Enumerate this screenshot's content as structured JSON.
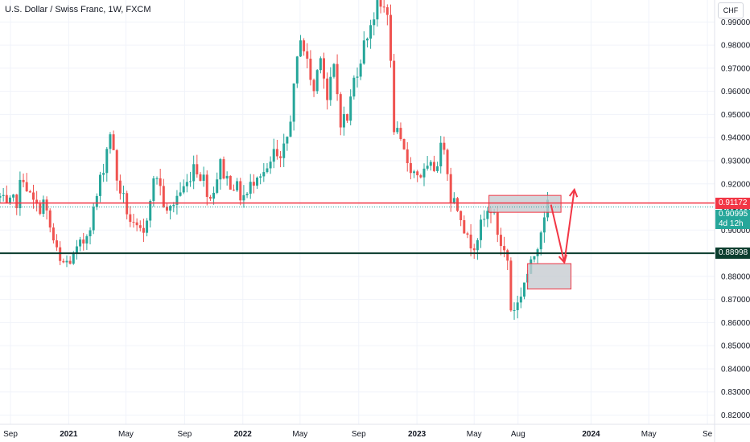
{
  "header": {
    "symbol_title": "U.S. Dollar / Swiss Franc, 1W, FXCM"
  },
  "price_axis": {
    "currency": "CHF"
  },
  "colors": {
    "up": "#26a69a",
    "down": "#ef5350",
    "resistance": "#f23645",
    "support": "#0b3d2e",
    "zone_fill": "#c7ccd1",
    "arrow": "#f23645"
  },
  "chart_data": {
    "type": "candlestick",
    "title": "U.S. Dollar / Swiss Franc, 1W, FXCM",
    "ylim": [
      0.816,
      0.9995
    ],
    "y_ticks": [
      "0.99000",
      "0.98000",
      "0.97000",
      "0.96000",
      "0.95000",
      "0.94000",
      "0.93000",
      "0.92000",
      "0.91000",
      "0.90000",
      "0.89000",
      "0.88000",
      "0.87000",
      "0.86000",
      "0.85000",
      "0.84000",
      "0.83000",
      "0.82000"
    ],
    "x_range": [
      "2020-08-10",
      "2024-09-16"
    ],
    "x_ticks": [
      {
        "label": "Sep",
        "date": "2020-09-01",
        "bold": false
      },
      {
        "label": "2021",
        "date": "2021-01-01",
        "bold": true
      },
      {
        "label": "May",
        "date": "2021-05-01",
        "bold": false
      },
      {
        "label": "Sep",
        "date": "2021-09-01",
        "bold": false
      },
      {
        "label": "2022",
        "date": "2022-01-01",
        "bold": true
      },
      {
        "label": "May",
        "date": "2022-05-01",
        "bold": false
      },
      {
        "label": "Sep",
        "date": "2022-09-01",
        "bold": false
      },
      {
        "label": "2023",
        "date": "2023-01-01",
        "bold": true
      },
      {
        "label": "May",
        "date": "2023-05-01",
        "bold": false
      },
      {
        "label": "Aug",
        "date": "2023-08-01",
        "bold": false
      },
      {
        "label": "2024",
        "date": "2024-01-01",
        "bold": true
      },
      {
        "label": "May",
        "date": "2024-05-01",
        "bold": false
      },
      {
        "label": "Se",
        "date": "2024-09-01",
        "bold": false
      }
    ],
    "close_path": [
      [
        "2020-08-10",
        0.914
      ],
      [
        "2020-08-24",
        0.909
      ],
      [
        "2020-09-14",
        0.913
      ],
      [
        "2020-09-28",
        0.924
      ],
      [
        "2020-10-12",
        0.914
      ],
      [
        "2020-10-26",
        0.909
      ],
      [
        "2020-11-09",
        0.912
      ],
      [
        "2020-11-30",
        0.895
      ],
      [
        "2020-12-14",
        0.885
      ],
      [
        "2020-12-28",
        0.886
      ],
      [
        "2021-01-11",
        0.888
      ],
      [
        "2021-02-01",
        0.895
      ],
      [
        "2021-02-22",
        0.908
      ],
      [
        "2021-03-15",
        0.928
      ],
      [
        "2021-03-29",
        0.943
      ],
      [
        "2021-04-12",
        0.922
      ],
      [
        "2021-04-26",
        0.913
      ],
      [
        "2021-05-17",
        0.9
      ],
      [
        "2021-06-07",
        0.897
      ],
      [
        "2021-06-21",
        0.916
      ],
      [
        "2021-07-05",
        0.924
      ],
      [
        "2021-07-26",
        0.906
      ],
      [
        "2021-08-16",
        0.915
      ],
      [
        "2021-09-06",
        0.92
      ],
      [
        "2021-09-20",
        0.929
      ],
      [
        "2021-10-11",
        0.922
      ],
      [
        "2021-10-25",
        0.914
      ],
      [
        "2021-11-15",
        0.928
      ],
      [
        "2021-11-29",
        0.922
      ],
      [
        "2021-12-13",
        0.92
      ],
      [
        "2021-12-27",
        0.915
      ],
      [
        "2022-01-10",
        0.915
      ],
      [
        "2022-01-31",
        0.926
      ],
      [
        "2022-02-21",
        0.924
      ],
      [
        "2022-03-07",
        0.933
      ],
      [
        "2022-03-21",
        0.928
      ],
      [
        "2022-04-04",
        0.94
      ],
      [
        "2022-04-18",
        0.96
      ],
      [
        "2022-05-02",
        0.985
      ],
      [
        "2022-05-16",
        0.972
      ],
      [
        "2022-05-30",
        0.96
      ],
      [
        "2022-06-13",
        0.978
      ],
      [
        "2022-06-27",
        0.956
      ],
      [
        "2022-07-11",
        0.97
      ],
      [
        "2022-07-25",
        0.948
      ],
      [
        "2022-08-08",
        0.948
      ],
      [
        "2022-08-22",
        0.965
      ],
      [
        "2022-09-05",
        0.975
      ],
      [
        "2022-09-26",
        0.99
      ],
      [
        "2022-10-10",
        0.996
      ],
      [
        "2022-10-31",
        0.996
      ],
      [
        "2022-11-14",
        0.945
      ],
      [
        "2022-11-28",
        0.936
      ],
      [
        "2022-12-12",
        0.93
      ],
      [
        "2022-12-26",
        0.925
      ],
      [
        "2023-01-16",
        0.924
      ],
      [
        "2023-02-06",
        0.927
      ],
      [
        "2023-02-27",
        0.938
      ],
      [
        "2023-03-13",
        0.915
      ],
      [
        "2023-04-03",
        0.908
      ],
      [
        "2023-04-17",
        0.895
      ],
      [
        "2023-05-01",
        0.895
      ],
      [
        "2023-05-22",
        0.904
      ],
      [
        "2023-06-05",
        0.91
      ],
      [
        "2023-06-26",
        0.894
      ],
      [
        "2023-07-10",
        0.887
      ],
      [
        "2023-07-17",
        0.866
      ],
      [
        "2023-07-31",
        0.868
      ],
      [
        "2023-08-14",
        0.878
      ],
      [
        "2023-08-28",
        0.884
      ],
      [
        "2023-09-11",
        0.895
      ],
      [
        "2023-09-25",
        0.908
      ],
      [
        "2023-10-02",
        0.91
      ]
    ],
    "last_candle_date": "2023-10-02",
    "analysis": {
      "resistance_level": 0.91172,
      "support_level": 0.88998,
      "current_price": 0.90995,
      "resistance_zone": {
        "x0": "2023-06-01",
        "x1": "2023-10-30",
        "y_top": 0.915,
        "y_bottom": 0.9077
      },
      "support_zone": {
        "x0": "2023-08-21",
        "x1": "2023-11-20",
        "y_top": 0.8855,
        "y_bottom": 0.8745
      },
      "projection": [
        [
          "2023-10-09",
          0.911
        ],
        [
          "2023-11-06",
          0.886
        ],
        [
          "2023-11-27",
          0.9175
        ]
      ]
    },
    "price_labels": {
      "resistance": "0.91172",
      "support": "0.88998",
      "current": "0.90995",
      "countdown": "4d 12h"
    }
  }
}
